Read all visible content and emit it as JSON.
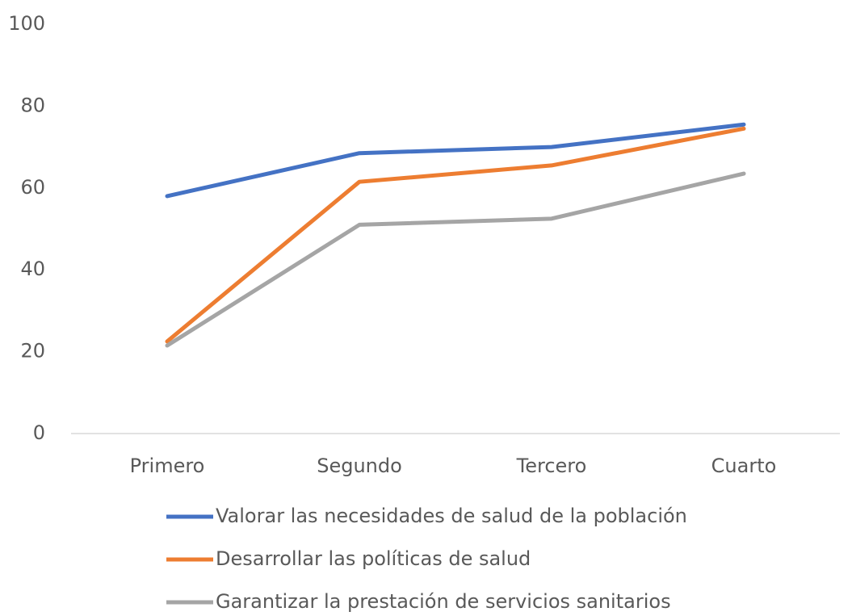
{
  "chart_data": {
    "type": "line",
    "categories": [
      "Primero",
      "Segundo",
      "Tercero",
      "Cuarto"
    ],
    "series": [
      {
        "name": "Valorar las necesidades de salud de la población",
        "color": "#4472c4",
        "values": [
          58,
          68.5,
          70,
          75.5
        ]
      },
      {
        "name": "Desarrollar las políticas de salud",
        "color": "#ed7d31",
        "values": [
          22.5,
          61.5,
          65.5,
          74.5
        ]
      },
      {
        "name": "Garantizar la prestación de servicios sanitarios",
        "color": "#a5a5a5",
        "values": [
          21.5,
          51,
          52.5,
          63.5
        ]
      }
    ],
    "ylim": [
      0,
      100
    ],
    "yticks": [
      0,
      20,
      40,
      60,
      80,
      100
    ],
    "grid": false,
    "legend": "bottom"
  }
}
